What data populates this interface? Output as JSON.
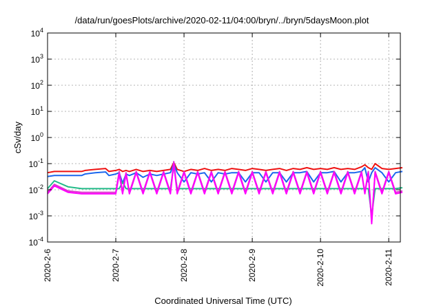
{
  "chart_data": {
    "type": "line",
    "title": "/data/run/goesPlots/archive/2020-02-11/04:00/bryn/../bryn/5daysMoon.plot",
    "xlabel": "Coordinated Universal Time (UTC)",
    "ylabel": "cSv/day",
    "yscale": "log",
    "ylim": [
      0.0001,
      10000
    ],
    "y_ticks": [
      {
        "base": "10",
        "exp": "4",
        "value": 10000
      },
      {
        "base": "10",
        "exp": "3",
        "value": 1000
      },
      {
        "base": "10",
        "exp": "2",
        "value": 100
      },
      {
        "base": "10",
        "exp": "1",
        "value": 10
      },
      {
        "base": "10",
        "exp": "0",
        "value": 1
      },
      {
        "base": "10",
        "exp": "-1",
        "value": 0.1
      },
      {
        "base": "10",
        "exp": "-2",
        "value": 0.01
      },
      {
        "base": "10",
        "exp": "-3",
        "value": 0.001
      },
      {
        "base": "10",
        "exp": "-4",
        "value": 0.0001
      }
    ],
    "xlim": [
      "2020-02-06",
      "2020-02-11 04:00"
    ],
    "x_ticks": [
      {
        "label": "2020-2-6",
        "value": 0
      },
      {
        "label": "2020-2-7",
        "value": 1
      },
      {
        "label": "2020-2-8",
        "value": 2
      },
      {
        "label": "2020-2-9",
        "value": 3
      },
      {
        "label": "2020-2-10",
        "value": 4
      },
      {
        "label": "2020-2-11",
        "value": 5
      }
    ],
    "grid": true,
    "series": [
      {
        "color": "#ee1111",
        "x": [
          0,
          0.1,
          0.3,
          0.5,
          0.55,
          0.7,
          0.85,
          0.9,
          1.0,
          1.05,
          1.1,
          1.15,
          1.2,
          1.3,
          1.4,
          1.5,
          1.6,
          1.7,
          1.8,
          1.85,
          1.9,
          2.0,
          2.1,
          2.2,
          2.3,
          2.4,
          2.5,
          2.6,
          2.7,
          2.8,
          2.9,
          3.0,
          3.1,
          3.2,
          3.3,
          3.4,
          3.5,
          3.6,
          3.7,
          3.8,
          3.9,
          4.0,
          4.1,
          4.2,
          4.3,
          4.4,
          4.5,
          4.6,
          4.65,
          4.7,
          4.75,
          4.8,
          4.9,
          5.0,
          5.1,
          5.2
        ],
        "y": [
          0.045,
          0.05,
          0.05,
          0.05,
          0.055,
          0.06,
          0.065,
          0.05,
          0.055,
          0.06,
          0.05,
          0.055,
          0.05,
          0.06,
          0.05,
          0.055,
          0.05,
          0.055,
          0.06,
          0.11,
          0.06,
          0.05,
          0.06,
          0.055,
          0.065,
          0.055,
          0.06,
          0.055,
          0.065,
          0.06,
          0.055,
          0.065,
          0.06,
          0.055,
          0.06,
          0.065,
          0.055,
          0.065,
          0.06,
          0.07,
          0.06,
          0.065,
          0.06,
          0.07,
          0.06,
          0.065,
          0.06,
          0.075,
          0.09,
          0.07,
          0.06,
          0.1,
          0.065,
          0.06,
          0.065,
          0.07
        ]
      },
      {
        "color": "#1a66ee",
        "x": [
          0,
          0.1,
          0.3,
          0.5,
          0.55,
          0.7,
          0.85,
          0.9,
          1.0,
          1.05,
          1.1,
          1.15,
          1.2,
          1.3,
          1.4,
          1.5,
          1.6,
          1.7,
          1.8,
          1.85,
          1.9,
          2.0,
          2.1,
          2.2,
          2.3,
          2.4,
          2.5,
          2.6,
          2.7,
          2.8,
          2.9,
          3.0,
          3.1,
          3.2,
          3.3,
          3.4,
          3.5,
          3.6,
          3.7,
          3.8,
          3.9,
          4.0,
          4.1,
          4.2,
          4.3,
          4.4,
          4.5,
          4.6,
          4.65,
          4.7,
          4.75,
          4.8,
          4.9,
          5.0,
          5.1,
          5.2
        ],
        "y": [
          0.032,
          0.035,
          0.035,
          0.035,
          0.04,
          0.045,
          0.048,
          0.035,
          0.04,
          0.045,
          0.018,
          0.04,
          0.035,
          0.045,
          0.03,
          0.04,
          0.035,
          0.04,
          0.045,
          0.1,
          0.045,
          0.02,
          0.045,
          0.04,
          0.045,
          0.02,
          0.045,
          0.04,
          0.045,
          0.045,
          0.02,
          0.045,
          0.045,
          0.02,
          0.045,
          0.045,
          0.02,
          0.045,
          0.045,
          0.05,
          0.02,
          0.045,
          0.045,
          0.05,
          0.02,
          0.045,
          0.045,
          0.05,
          0.07,
          0.02,
          0.045,
          0.07,
          0.045,
          0.02,
          0.045,
          0.05
        ]
      },
      {
        "color": "#22bb88",
        "x": [
          0,
          0.1,
          0.3,
          0.5,
          0.55,
          0.7,
          0.85,
          0.9,
          1.0,
          1.05,
          1.1,
          1.15,
          1.2,
          1.3,
          1.4,
          1.5,
          1.6,
          1.7,
          1.8,
          1.85,
          1.9,
          2.0,
          2.1,
          2.2,
          2.3,
          2.4,
          2.5,
          2.6,
          2.7,
          2.8,
          2.9,
          3.0,
          3.1,
          3.2,
          3.3,
          3.4,
          3.5,
          3.6,
          3.7,
          3.8,
          3.9,
          4.0,
          4.1,
          4.2,
          4.3,
          4.4,
          4.5,
          4.6,
          4.65,
          4.7,
          4.75,
          4.8,
          4.9,
          5.0,
          5.1,
          5.2
        ],
        "y": [
          0.011,
          0.022,
          0.013,
          0.011,
          0.011,
          0.011,
          0.011,
          0.011,
          0.011,
          0.011,
          0.02,
          0.011,
          0.011,
          0.011,
          0.011,
          0.011,
          0.011,
          0.011,
          0.011,
          0.08,
          0.011,
          0.011,
          0.011,
          0.011,
          0.011,
          0.011,
          0.011,
          0.011,
          0.011,
          0.011,
          0.011,
          0.011,
          0.011,
          0.011,
          0.011,
          0.011,
          0.011,
          0.011,
          0.011,
          0.011,
          0.011,
          0.011,
          0.011,
          0.011,
          0.011,
          0.011,
          0.011,
          0.011,
          0.011,
          0.011,
          0.001,
          0.011,
          0.011,
          0.011,
          0.011,
          0.012
        ]
      },
      {
        "color": "#dd33cc",
        "x": [
          0,
          0.1,
          0.3,
          0.5,
          0.55,
          0.7,
          0.85,
          0.9,
          1.0,
          1.05,
          1.1,
          1.15,
          1.2,
          1.3,
          1.4,
          1.5,
          1.6,
          1.7,
          1.8,
          1.85,
          1.9,
          2.0,
          2.1,
          2.2,
          2.3,
          2.4,
          2.5,
          2.6,
          2.7,
          2.8,
          2.9,
          3.0,
          3.1,
          3.2,
          3.3,
          3.4,
          3.5,
          3.6,
          3.7,
          3.8,
          3.9,
          4.0,
          4.1,
          4.2,
          4.3,
          4.4,
          4.5,
          4.6,
          4.65,
          4.7,
          4.75,
          4.8,
          4.9,
          5.0,
          5.1,
          5.2
        ],
        "y": [
          0.008,
          0.016,
          0.009,
          0.008,
          0.008,
          0.008,
          0.008,
          0.008,
          0.008,
          0.05,
          0.008,
          0.045,
          0.008,
          0.05,
          0.008,
          0.05,
          0.008,
          0.05,
          0.008,
          0.12,
          0.008,
          0.05,
          0.008,
          0.05,
          0.008,
          0.05,
          0.008,
          0.05,
          0.008,
          0.05,
          0.008,
          0.05,
          0.008,
          0.05,
          0.008,
          0.05,
          0.008,
          0.05,
          0.008,
          0.05,
          0.008,
          0.05,
          0.008,
          0.05,
          0.008,
          0.05,
          0.008,
          0.05,
          0.008,
          0.05,
          0.0006,
          0.05,
          0.008,
          0.05,
          0.008,
          0.009
        ]
      },
      {
        "color": "#ff00ff",
        "x": [
          0,
          0.1,
          0.3,
          0.5,
          0.55,
          0.7,
          0.85,
          0.9,
          1.0,
          1.05,
          1.1,
          1.15,
          1.2,
          1.3,
          1.4,
          1.5,
          1.6,
          1.7,
          1.8,
          1.85,
          1.9,
          2.0,
          2.1,
          2.2,
          2.3,
          2.4,
          2.5,
          2.6,
          2.7,
          2.8,
          2.9,
          3.0,
          3.1,
          3.2,
          3.3,
          3.4,
          3.5,
          3.6,
          3.7,
          3.8,
          3.9,
          4.0,
          4.1,
          4.2,
          4.3,
          4.4,
          4.5,
          4.6,
          4.65,
          4.7,
          4.75,
          4.8,
          4.9,
          5.0,
          5.1,
          5.2
        ],
        "y": [
          0.007,
          0.014,
          0.008,
          0.007,
          0.007,
          0.007,
          0.007,
          0.007,
          0.007,
          0.04,
          0.007,
          0.04,
          0.007,
          0.045,
          0.007,
          0.045,
          0.007,
          0.045,
          0.007,
          0.1,
          0.007,
          0.045,
          0.007,
          0.045,
          0.007,
          0.045,
          0.007,
          0.045,
          0.007,
          0.045,
          0.007,
          0.045,
          0.007,
          0.045,
          0.007,
          0.045,
          0.007,
          0.045,
          0.007,
          0.045,
          0.007,
          0.045,
          0.007,
          0.045,
          0.007,
          0.045,
          0.007,
          0.045,
          0.007,
          0.045,
          0.0005,
          0.045,
          0.007,
          0.045,
          0.007,
          0.008
        ]
      }
    ]
  }
}
